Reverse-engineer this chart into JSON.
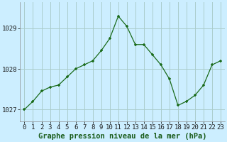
{
  "x": [
    0,
    1,
    2,
    3,
    4,
    5,
    6,
    7,
    8,
    9,
    10,
    11,
    12,
    13,
    14,
    15,
    16,
    17,
    18,
    19,
    20,
    21,
    22,
    23
  ],
  "y": [
    1027.0,
    1027.2,
    1027.45,
    1027.55,
    1027.6,
    1027.8,
    1028.0,
    1028.1,
    1028.2,
    1028.45,
    1028.75,
    1029.3,
    1029.05,
    1028.6,
    1028.6,
    1028.35,
    1028.1,
    1027.75,
    1027.1,
    1027.2,
    1027.35,
    1027.6,
    1028.1,
    1028.2
  ],
  "line_color": "#1a6b1a",
  "marker": "+",
  "bg_color": "#cceeff",
  "grid_color": "#aacccc",
  "xlabel": "Graphe pression niveau de la mer (hPa)",
  "xlabel_color": "#1a5c1a",
  "ytick_labels": [
    "1027",
    "1028",
    "1029"
  ],
  "yticks": [
    1027,
    1028,
    1029
  ],
  "ylim": [
    1026.7,
    1029.65
  ],
  "xlim": [
    -0.5,
    23.5
  ],
  "axis_fontsize": 6.5,
  "label_fontsize": 7.5
}
